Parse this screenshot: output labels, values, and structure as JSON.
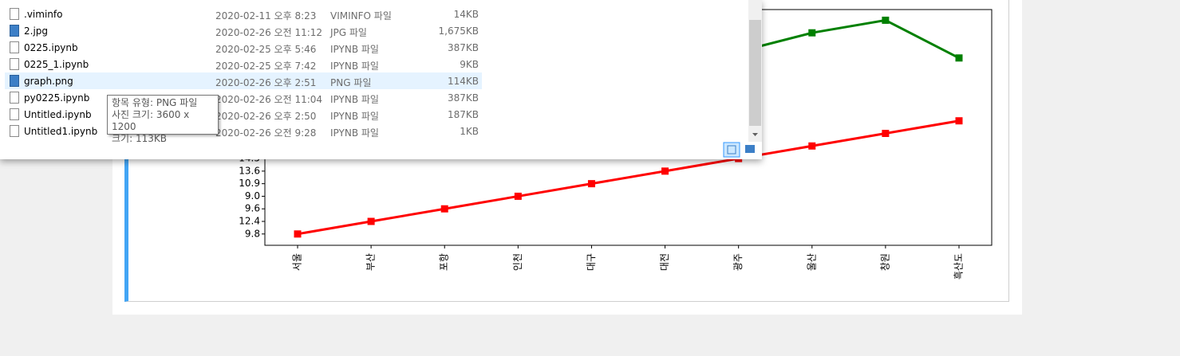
{
  "file_list": {
    "rows": [
      {
        "name": ".viminfo",
        "date": "2020-02-11 오후 8:23",
        "type": "VIMINFO 파일",
        "size": "14KB",
        "icon": "file"
      },
      {
        "name": "2.jpg",
        "date": "2020-02-26 오전 11:12",
        "type": "JPG 파일",
        "size": "1,675KB",
        "icon": "image"
      },
      {
        "name": "0225.ipynb",
        "date": "2020-02-25 오후 5:46",
        "type": "IPYNB 파일",
        "size": "387KB",
        "icon": "file"
      },
      {
        "name": "0225_1.ipynb",
        "date": "2020-02-25 오후 7:42",
        "type": "IPYNB 파일",
        "size": "9KB",
        "icon": "file"
      },
      {
        "name": "graph.png",
        "date": "2020-02-26 오후 2:51",
        "type": "PNG 파일",
        "size": "114KB",
        "icon": "image",
        "selected": true
      },
      {
        "name": "py0225.ipynb",
        "date": "2020-02-26 오전 11:04",
        "type": "IPYNB 파일",
        "size": "387KB",
        "icon": "file"
      },
      {
        "name": "Untitled.ipynb",
        "date": "2020-02-26 오후 2:50",
        "type": "IPYNB 파일",
        "size": "187KB",
        "icon": "file"
      },
      {
        "name": "Untitled1.ipynb",
        "date": "2020-02-26 오전 9:28",
        "type": "IPYNB 파일",
        "size": "1KB",
        "icon": "file"
      }
    ]
  },
  "tooltip": {
    "lines": [
      "항목 유형: PNG 파일",
      "사진 크기: 3600 x 1200",
      "크기: 113KB"
    ]
  },
  "chart_data": {
    "type": "line",
    "categories": [
      "서울",
      "부산",
      "포항",
      "인천",
      "대구",
      "대전",
      "광주",
      "울산",
      "창원",
      "흑산도"
    ],
    "ycategories": [
      "9.8",
      "12.4",
      "9.6",
      "9.0",
      "10.9",
      "13.6",
      "14.5"
    ],
    "ylim": [
      -0.9,
      17.85
    ],
    "series": [
      {
        "color": "#ff0000",
        "values": [
          0,
          1,
          2,
          3,
          4,
          5,
          6,
          7,
          8,
          9
        ]
      },
      {
        "color": "#008000",
        "values": [
          null,
          null,
          null,
          null,
          null,
          null,
          14.5,
          16,
          17,
          14
        ]
      }
    ]
  }
}
